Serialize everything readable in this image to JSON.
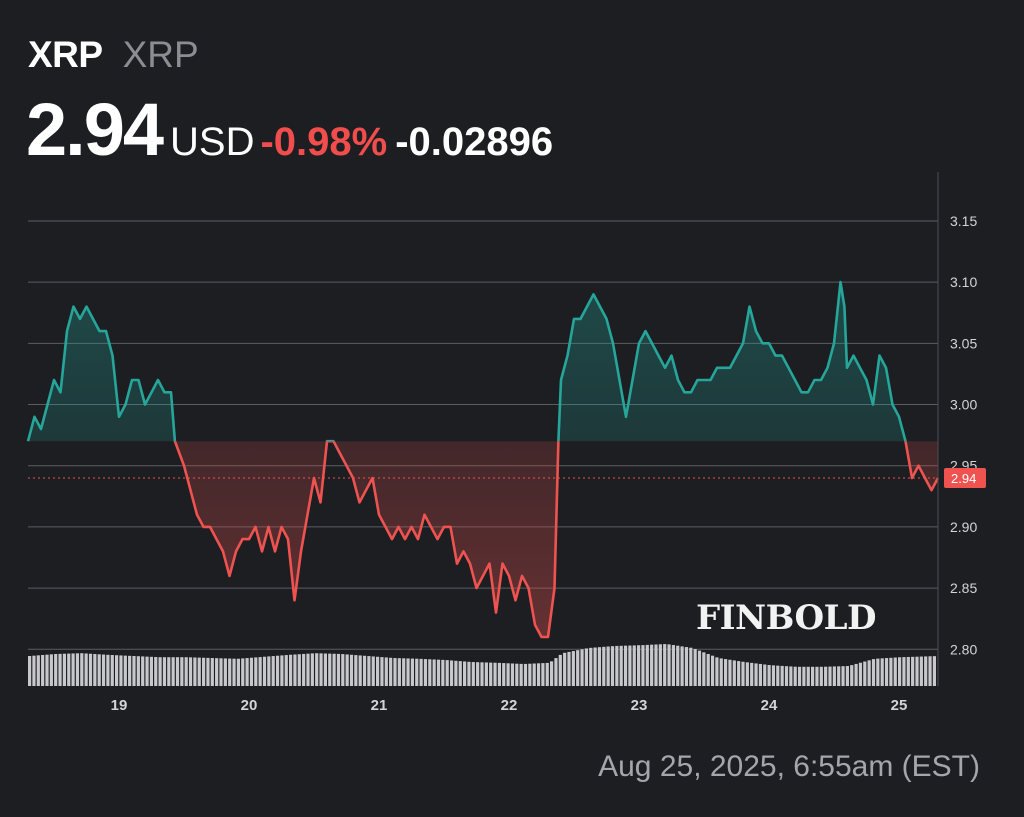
{
  "header": {
    "symbol": "XRP",
    "name": "XRP",
    "price": "2.94",
    "currency": "USD",
    "change_pct": "-0.98%",
    "change_abs": "-0.02896"
  },
  "timestamp": "Aug 25, 2025, 6:55am (EST)",
  "watermark": "FINBOLD",
  "colors": {
    "up": "#26a69a",
    "down": "#ef5350",
    "background": "#1c1e22",
    "volume": "#c8c8cc"
  },
  "chart_data": {
    "type": "line",
    "reference_value": 2.97,
    "last_price": 2.94,
    "last_price_label": "2.94",
    "ylim": [
      2.77,
      3.19
    ],
    "y_ticks": [
      2.8,
      2.85,
      2.9,
      2.95,
      3.0,
      3.05,
      3.1,
      3.15
    ],
    "y_tick_labels": [
      "2.80",
      "2.85",
      "2.90",
      "2.95",
      "3.00",
      "3.05",
      "3.10",
      "3.15"
    ],
    "xlim": [
      18.3,
      25.3
    ],
    "x_ticks": [
      19,
      20,
      21,
      22,
      23,
      24,
      25
    ],
    "x_tick_labels": [
      "19",
      "20",
      "21",
      "22",
      "23",
      "24",
      "25"
    ],
    "grid": true,
    "series": [
      {
        "x": [
          18.3,
          18.35,
          18.4,
          18.45,
          18.5,
          18.55,
          18.6,
          18.65,
          18.7,
          18.75,
          18.8,
          18.85,
          18.9,
          18.95,
          19.0,
          19.05,
          19.1,
          19.15,
          19.2,
          19.25,
          19.3,
          19.35,
          19.4,
          19.43,
          19.5,
          19.55,
          19.6,
          19.65,
          19.7,
          19.75,
          19.8,
          19.85,
          19.9,
          19.95,
          20.0,
          20.05,
          20.1,
          20.15,
          20.2,
          20.25,
          20.3,
          20.35,
          20.4,
          20.45,
          20.5,
          20.55,
          20.6,
          20.65,
          20.7,
          20.75,
          20.8,
          20.85,
          20.9,
          20.95,
          21.0,
          21.05,
          21.1,
          21.15,
          21.2,
          21.25,
          21.3,
          21.35,
          21.4,
          21.45,
          21.5,
          21.55,
          21.6,
          21.65,
          21.7,
          21.75,
          21.8,
          21.85,
          21.9,
          21.95,
          22.0,
          22.05,
          22.1,
          22.15,
          22.2,
          22.25,
          22.3,
          22.35,
          22.38,
          22.4,
          22.45,
          22.5,
          22.55,
          22.6,
          22.65,
          22.7,
          22.75,
          22.8,
          22.85,
          22.9,
          22.95,
          23.0,
          23.05,
          23.1,
          23.15,
          23.2,
          23.25,
          23.3,
          23.35,
          23.4,
          23.45,
          23.5,
          23.55,
          23.6,
          23.65,
          23.7,
          23.75,
          23.8,
          23.85,
          23.9,
          23.95,
          24.0,
          24.05,
          24.1,
          24.15,
          24.2,
          24.25,
          24.3,
          24.35,
          24.4,
          24.45,
          24.5,
          24.55,
          24.58,
          24.6,
          24.65,
          24.7,
          24.75,
          24.8,
          24.85,
          24.9,
          24.95,
          25.0,
          25.05,
          25.1,
          25.15,
          25.2,
          25.25,
          25.3
        ],
        "values": [
          2.97,
          2.99,
          2.98,
          3.0,
          3.02,
          3.01,
          3.06,
          3.08,
          3.07,
          3.08,
          3.07,
          3.06,
          3.06,
          3.04,
          2.99,
          3.0,
          3.02,
          3.02,
          3.0,
          3.01,
          3.02,
          3.01,
          3.01,
          2.97,
          2.95,
          2.93,
          2.91,
          2.9,
          2.9,
          2.89,
          2.88,
          2.86,
          2.88,
          2.89,
          2.89,
          2.9,
          2.88,
          2.9,
          2.88,
          2.9,
          2.89,
          2.84,
          2.88,
          2.91,
          2.94,
          2.92,
          2.97,
          2.97,
          2.96,
          2.95,
          2.94,
          2.92,
          2.93,
          2.94,
          2.91,
          2.9,
          2.89,
          2.9,
          2.89,
          2.9,
          2.89,
          2.91,
          2.9,
          2.89,
          2.9,
          2.9,
          2.87,
          2.88,
          2.87,
          2.85,
          2.86,
          2.87,
          2.83,
          2.87,
          2.86,
          2.84,
          2.86,
          2.85,
          2.82,
          2.81,
          2.81,
          2.85,
          2.97,
          3.02,
          3.04,
          3.07,
          3.07,
          3.08,
          3.09,
          3.08,
          3.07,
          3.05,
          3.02,
          2.99,
          3.02,
          3.05,
          3.06,
          3.05,
          3.04,
          3.03,
          3.04,
          3.02,
          3.01,
          3.01,
          3.02,
          3.02,
          3.02,
          3.03,
          3.03,
          3.03,
          3.04,
          3.05,
          3.08,
          3.06,
          3.05,
          3.05,
          3.04,
          3.04,
          3.03,
          3.02,
          3.01,
          3.01,
          3.02,
          3.02,
          3.03,
          3.05,
          3.1,
          3.08,
          3.03,
          3.04,
          3.03,
          3.02,
          3.0,
          3.04,
          3.03,
          3.0,
          2.99,
          2.97,
          2.94,
          2.95,
          2.94,
          2.93,
          2.94
        ]
      }
    ],
    "volume": {
      "x": [
        18.3,
        18.5,
        18.7,
        18.9,
        19.1,
        19.3,
        19.5,
        19.7,
        19.9,
        20.1,
        20.3,
        20.5,
        20.7,
        20.9,
        21.1,
        21.3,
        21.5,
        21.7,
        21.9,
        22.1,
        22.3,
        22.4,
        22.6,
        22.8,
        23.0,
        23.2,
        23.4,
        23.6,
        23.8,
        24.0,
        24.2,
        24.4,
        24.6,
        24.8,
        25.0,
        25.3
      ],
      "values": [
        0.55,
        0.6,
        0.62,
        0.58,
        0.55,
        0.52,
        0.52,
        0.5,
        0.48,
        0.53,
        0.58,
        0.62,
        0.6,
        0.55,
        0.5,
        0.48,
        0.45,
        0.4,
        0.38,
        0.35,
        0.38,
        0.62,
        0.75,
        0.8,
        0.82,
        0.85,
        0.75,
        0.5,
        0.4,
        0.32,
        0.28,
        0.28,
        0.3,
        0.48,
        0.52,
        0.55
      ]
    }
  }
}
